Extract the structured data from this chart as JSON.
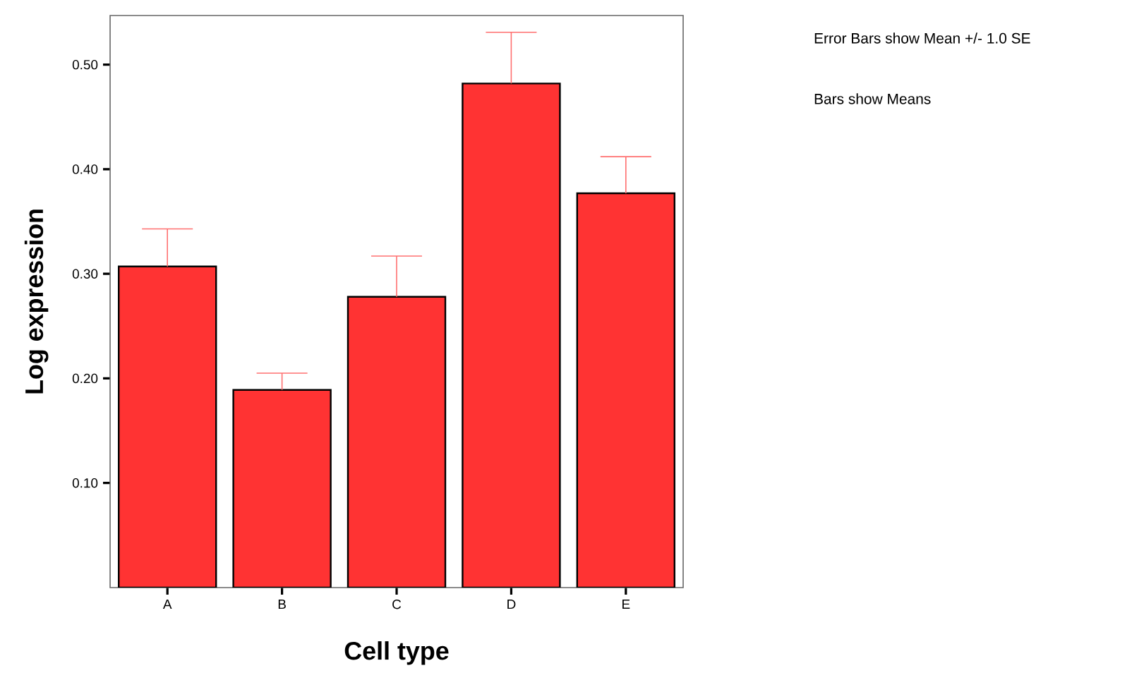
{
  "chart_data": {
    "type": "bar",
    "xlabel": "Cell type",
    "ylabel": "Log expression",
    "categories": [
      "A",
      "B",
      "C",
      "D",
      "E"
    ],
    "values": [
      0.307,
      0.189,
      0.278,
      0.482,
      0.377
    ],
    "errors": [
      0.036,
      0.016,
      0.039,
      0.049,
      0.035
    ],
    "color": "#ff3333",
    "ylim": [
      0,
      0.547
    ],
    "yticks": [
      {
        "value": 0.1,
        "label": "0.10"
      },
      {
        "value": 0.2,
        "label": "0.20"
      },
      {
        "value": 0.3,
        "label": "0.30"
      },
      {
        "value": 0.4,
        "label": "0.40"
      },
      {
        "value": 0.5,
        "label": "0.50"
      }
    ],
    "grid": false,
    "annotations": [
      "Error Bars show Mean +/- 1.0 SE",
      "Bars show Means"
    ]
  }
}
